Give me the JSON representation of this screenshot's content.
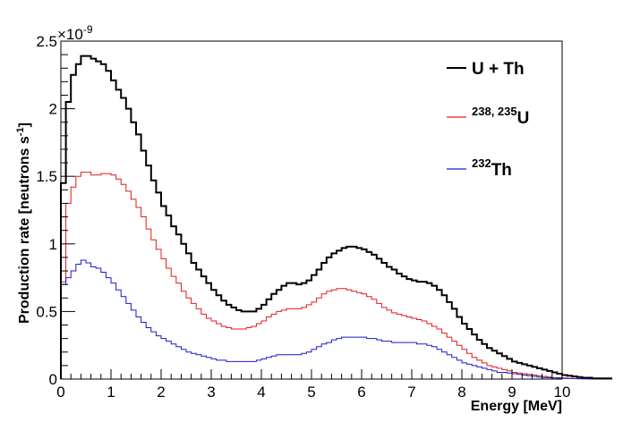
{
  "chart_data": {
    "type": "line",
    "step": true,
    "xlabel": "Energy [MeV]",
    "ylabel": "Production rate [neutrons s",
    "ylabel_sup": "-1",
    "ylabel_end": "]",
    "y_exponent_base": "×10",
    "y_exponent": "-9",
    "xlim": [
      0,
      10
    ],
    "ylim": [
      0,
      2.5
    ],
    "y_scale": 1e-09,
    "bin_width": 0.1,
    "xticks": [
      0,
      1,
      2,
      3,
      4,
      5,
      6,
      7,
      8,
      9,
      10
    ],
    "xtick_labels": [
      "0",
      "1",
      "2",
      "3",
      "4",
      "5",
      "6",
      "7",
      "8",
      "9",
      "10"
    ],
    "yticks": [
      0,
      0.5,
      1,
      1.5,
      2,
      2.5
    ],
    "ytick_labels": [
      "0",
      "0.5",
      "1",
      "1.5",
      "2",
      "2.5"
    ],
    "grid": false,
    "legend_position": "top-right",
    "series": [
      {
        "name": "U + Th",
        "name_parts": {
          "sup": "",
          "main": "U + Th"
        },
        "color": "#000000",
        "width": 2,
        "values": [
          1.45,
          2.05,
          2.25,
          2.33,
          2.39,
          2.39,
          2.37,
          2.35,
          2.33,
          2.28,
          2.21,
          2.14,
          2.08,
          2.0,
          1.9,
          1.81,
          1.69,
          1.58,
          1.47,
          1.38,
          1.28,
          1.21,
          1.13,
          1.07,
          1.0,
          0.93,
          0.86,
          0.81,
          0.76,
          0.71,
          0.66,
          0.62,
          0.58,
          0.55,
          0.53,
          0.51,
          0.5,
          0.5,
          0.5,
          0.52,
          0.55,
          0.59,
          0.63,
          0.66,
          0.69,
          0.71,
          0.71,
          0.7,
          0.71,
          0.73,
          0.77,
          0.81,
          0.86,
          0.9,
          0.93,
          0.95,
          0.97,
          0.98,
          0.98,
          0.97,
          0.96,
          0.94,
          0.92,
          0.89,
          0.86,
          0.83,
          0.81,
          0.78,
          0.76,
          0.74,
          0.73,
          0.72,
          0.72,
          0.71,
          0.69,
          0.66,
          0.62,
          0.57,
          0.52,
          0.46,
          0.41,
          0.37,
          0.33,
          0.29,
          0.26,
          0.23,
          0.21,
          0.19,
          0.17,
          0.15,
          0.13,
          0.12,
          0.11,
          0.1,
          0.09,
          0.08,
          0.07,
          0.06,
          0.05,
          0.04,
          0.03,
          0.025,
          0.02,
          0.015,
          0.01,
          0.01,
          0.005,
          0.005,
          0.005,
          0.005
        ]
      },
      {
        "name": "238, 235U",
        "name_parts": {
          "sup": "238, 235",
          "main": "U"
        },
        "color": "#e31a1c",
        "width": 1,
        "values": [
          0.72,
          1.3,
          1.42,
          1.5,
          1.53,
          1.53,
          1.51,
          1.51,
          1.52,
          1.52,
          1.51,
          1.48,
          1.44,
          1.39,
          1.33,
          1.27,
          1.2,
          1.11,
          1.03,
          0.96,
          0.89,
          0.82,
          0.76,
          0.71,
          0.65,
          0.6,
          0.56,
          0.52,
          0.48,
          0.45,
          0.43,
          0.41,
          0.39,
          0.38,
          0.37,
          0.37,
          0.37,
          0.38,
          0.39,
          0.41,
          0.43,
          0.46,
          0.48,
          0.5,
          0.51,
          0.52,
          0.52,
          0.52,
          0.53,
          0.55,
          0.57,
          0.6,
          0.63,
          0.65,
          0.66,
          0.67,
          0.67,
          0.66,
          0.65,
          0.64,
          0.63,
          0.61,
          0.59,
          0.56,
          0.53,
          0.51,
          0.49,
          0.48,
          0.47,
          0.46,
          0.45,
          0.44,
          0.43,
          0.41,
          0.39,
          0.37,
          0.34,
          0.31,
          0.28,
          0.25,
          0.22,
          0.19,
          0.16,
          0.14,
          0.12,
          0.1,
          0.09,
          0.08,
          0.07,
          0.06,
          0.05,
          0.045,
          0.04,
          0.035,
          0.03,
          0.025,
          0.02,
          0.015,
          0.01,
          0.01,
          0.008,
          0.006,
          0.005,
          0.004,
          0.003,
          0.003,
          0.002,
          0.002,
          0.001,
          0.001
        ]
      },
      {
        "name": "232Th",
        "name_parts": {
          "sup": "232",
          "main": "Th"
        },
        "color": "#1a1acc",
        "width": 1,
        "values": [
          0.7,
          0.75,
          0.8,
          0.85,
          0.88,
          0.86,
          0.83,
          0.82,
          0.79,
          0.75,
          0.71,
          0.66,
          0.61,
          0.56,
          0.51,
          0.46,
          0.42,
          0.38,
          0.35,
          0.32,
          0.3,
          0.28,
          0.26,
          0.24,
          0.22,
          0.2,
          0.19,
          0.18,
          0.17,
          0.16,
          0.15,
          0.14,
          0.14,
          0.13,
          0.13,
          0.13,
          0.13,
          0.13,
          0.13,
          0.14,
          0.15,
          0.16,
          0.17,
          0.18,
          0.18,
          0.18,
          0.18,
          0.18,
          0.19,
          0.2,
          0.22,
          0.24,
          0.26,
          0.27,
          0.29,
          0.3,
          0.31,
          0.31,
          0.31,
          0.31,
          0.31,
          0.3,
          0.3,
          0.29,
          0.28,
          0.28,
          0.27,
          0.27,
          0.27,
          0.27,
          0.27,
          0.26,
          0.26,
          0.25,
          0.24,
          0.22,
          0.2,
          0.18,
          0.16,
          0.14,
          0.12,
          0.11,
          0.1,
          0.09,
          0.08,
          0.07,
          0.06,
          0.05,
          0.05,
          0.045,
          0.04,
          0.035,
          0.03,
          0.025,
          0.02,
          0.015,
          0.012,
          0.01,
          0.008,
          0.006,
          0.005,
          0.004,
          0.003,
          0.002,
          0.002,
          0.001,
          0.001,
          0.001,
          0.001,
          0.001
        ]
      }
    ]
  }
}
